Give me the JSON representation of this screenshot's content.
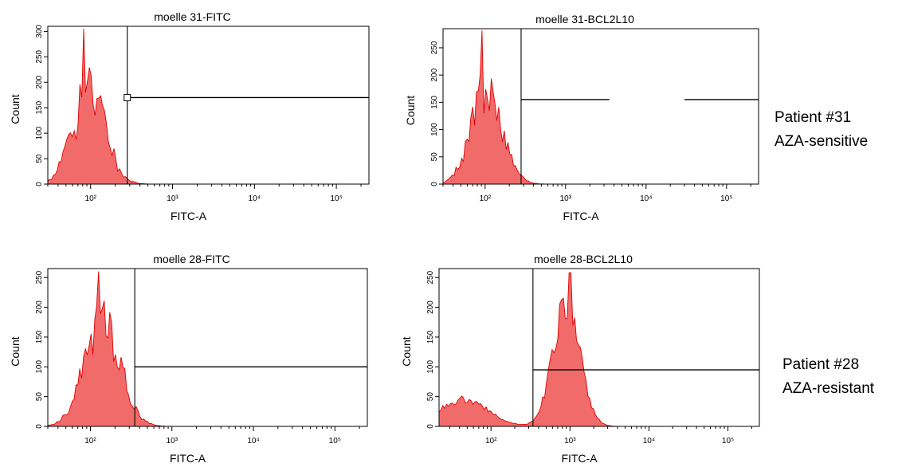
{
  "chart_data": [
    {
      "type": "area",
      "title": "moelle 31-FITC",
      "xlabel": "FITC-A",
      "ylabel": "Count",
      "x_scale": "log",
      "xlim": [
        30,
        250000
      ],
      "ylim": [
        0,
        310
      ],
      "yticks": [
        "0",
        "50",
        "100",
        "150",
        "200",
        "250",
        "300"
      ],
      "ytick_values": [
        0,
        50,
        100,
        150,
        200,
        250,
        300
      ],
      "xticks": [
        "10²",
        "10³",
        "10⁴",
        "10⁵"
      ],
      "xtick_values": [
        100,
        1000,
        10000,
        100000
      ],
      "gate_x": 280,
      "gate_y": 170,
      "gate_marker": true,
      "gate_gap": null,
      "fill_color": "#f26b6b",
      "line_color": "#e00000",
      "peaks": [
        {
          "center": 95,
          "sigma": 0.2,
          "height": 230
        }
      ],
      "noise": 0.5,
      "spikes": [
        {
          "at": 82,
          "height": 305
        }
      ],
      "seed": 31
    },
    {
      "type": "area",
      "title": "moelle 31-BCL2L10",
      "xlabel": "FITC-A",
      "ylabel": "Count",
      "x_scale": "log",
      "xlim": [
        30,
        250000
      ],
      "ylim": [
        0,
        285
      ],
      "yticks": [
        "0",
        "50",
        "100",
        "150",
        "200",
        "250"
      ],
      "ytick_values": [
        0,
        50,
        100,
        150,
        200,
        250
      ],
      "xticks": [
        "10²",
        "10³",
        "10⁴",
        "10⁵"
      ],
      "xtick_values": [
        100,
        1000,
        10000,
        100000
      ],
      "gate_x": 280,
      "gate_y": 155,
      "gate_marker": false,
      "gate_gap": [
        3500,
        30000
      ],
      "fill_color": "#f26b6b",
      "line_color": "#e00000",
      "peaks": [
        {
          "center": 105,
          "sigma": 0.19,
          "height": 235
        }
      ],
      "noise": 0.45,
      "spikes": [
        {
          "at": 92,
          "height": 282
        }
      ],
      "seed": 17
    },
    {
      "type": "area",
      "title": "moelle 28-FITC",
      "xlabel": "FITC-A",
      "ylabel": "Count",
      "x_scale": "log",
      "xlim": [
        30,
        250000
      ],
      "ylim": [
        0,
        265
      ],
      "yticks": [
        "0",
        "50",
        "100",
        "150",
        "200",
        "250"
      ],
      "ytick_values": [
        0,
        50,
        100,
        150,
        200,
        250
      ],
      "xticks": [
        "10²",
        "10³",
        "10⁴",
        "10⁵"
      ],
      "xtick_values": [
        100,
        1000,
        10000,
        100000
      ],
      "gate_x": 350,
      "gate_y": 100,
      "gate_marker": false,
      "gate_gap": null,
      "fill_color": "#f26b6b",
      "line_color": "#e00000",
      "peaks": [
        {
          "center": 140,
          "sigma": 0.22,
          "height": 215
        }
      ],
      "noise": 0.4,
      "spikes": [
        {
          "at": 125,
          "height": 260
        }
      ],
      "seed": 28
    },
    {
      "type": "area",
      "title": "moelle 28-BCL2L10",
      "xlabel": "FITC-A",
      "ylabel": "Count",
      "x_scale": "log",
      "xlim": [
        22,
        250000
      ],
      "ylim": [
        0,
        265
      ],
      "yticks": [
        "0",
        "50",
        "100",
        "150",
        "200",
        "250"
      ],
      "ytick_values": [
        0,
        50,
        100,
        150,
        200,
        250
      ],
      "xticks": [
        "10²",
        "10³",
        "10⁴",
        "10⁵"
      ],
      "xtick_values": [
        100,
        1000,
        10000,
        100000
      ],
      "gate_x": 340,
      "gate_y": 95,
      "gate_marker": false,
      "gate_gap": null,
      "fill_color": "#f26b6b",
      "line_color": "#e00000",
      "peaks": [
        {
          "center": 900,
          "sigma": 0.17,
          "height": 235
        },
        {
          "center": 45,
          "sigma": 0.3,
          "height": 52
        }
      ],
      "noise": 0.25,
      "spikes": [
        {
          "at": 1000,
          "height": 258
        }
      ],
      "seed": 7
    }
  ],
  "patients": [
    {
      "id_label": "Patient #31",
      "status": "AZA-sensitive"
    },
    {
      "id_label": "Patient #28",
      "status": "AZA-resistant"
    }
  ]
}
